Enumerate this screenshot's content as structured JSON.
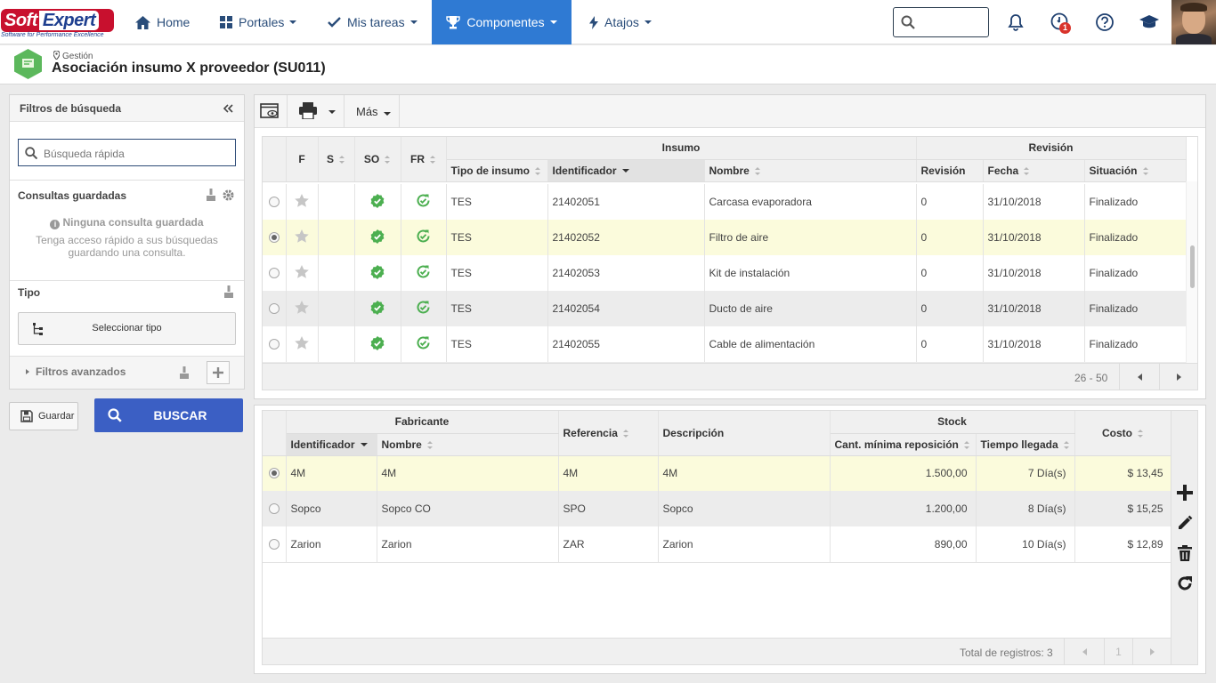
{
  "app": {
    "logo_soft": "Soft",
    "logo_expert": "Expert",
    "logo_tagline": "Software for Performance Excellence"
  },
  "nav": {
    "items": [
      {
        "label": "Home",
        "icon": "home-icon"
      },
      {
        "label": "Portales",
        "icon": "grid-icon"
      },
      {
        "label": "Mis tareas",
        "icon": "check-icon"
      },
      {
        "label": "Componentes",
        "icon": "trophy-icon"
      },
      {
        "label": "Atajos",
        "icon": "bolt-icon"
      }
    ],
    "notification_count": "1",
    "accent": "#2f7ad3"
  },
  "header": {
    "breadcrumb": "Gestión",
    "title": "Asociación insumo X proveedor (SU011)"
  },
  "filters": {
    "title": "Filtros de búsqueda",
    "search_placeholder": "Búsqueda rápida",
    "saved_title": "Consultas guardadas",
    "saved_empty": "Ninguna consulta guardada",
    "saved_hint": "Tenga acceso rápido a sus búsquedas guardando una consulta.",
    "type_title": "Tipo",
    "select_type": "Seleccionar tipo",
    "advanced": "Filtros avanzados",
    "save": "Guardar",
    "search": "BUSCAR"
  },
  "toolbar": {
    "more": "Más"
  },
  "grid1": {
    "group_insumo": "Insumo",
    "group_revision": "Revisión",
    "cols": {
      "f": "F",
      "s": "S",
      "so": "SO",
      "fr": "FR",
      "tipo": "Tipo de insumo",
      "id": "Identificador",
      "nombre": "Nombre",
      "revision": "Revisión",
      "fecha": "Fecha",
      "situacion": "Situación"
    },
    "rows": [
      {
        "tipo": "TES",
        "id": "21402051",
        "nombre": "Carcasa evaporadora",
        "revision": "0",
        "fecha": "31/10/2018",
        "situacion": "Finalizado"
      },
      {
        "tipo": "TES",
        "id": "21402052",
        "nombre": "Filtro de aire",
        "revision": "0",
        "fecha": "31/10/2018",
        "situacion": "Finalizado"
      },
      {
        "tipo": "TES",
        "id": "21402053",
        "nombre": "Kit de instalación",
        "revision": "0",
        "fecha": "31/10/2018",
        "situacion": "Finalizado"
      },
      {
        "tipo": "TES",
        "id": "21402054",
        "nombre": "Ducto de aire",
        "revision": "0",
        "fecha": "31/10/2018",
        "situacion": "Finalizado"
      },
      {
        "tipo": "TES",
        "id": "21402055",
        "nombre": "Cable de alimentación",
        "revision": "0",
        "fecha": "31/10/2018",
        "situacion": "Finalizado"
      }
    ],
    "range": "26 - 50"
  },
  "grid2": {
    "group_fabricante": "Fabricante",
    "group_stock": "Stock",
    "cols": {
      "id": "Identificador",
      "nombre": "Nombre",
      "referencia": "Referencia",
      "descripcion": "Descripción",
      "cant": "Cant. mínima reposición",
      "tiempo": "Tiempo llegada",
      "costo": "Costo"
    },
    "rows": [
      {
        "id": "4M",
        "nombre": "4M",
        "referencia": "4M",
        "descripcion": "4M",
        "cant": "1.500,00",
        "tiempo": "7 Día(s)",
        "costo": "$ 13,45"
      },
      {
        "id": "Sopco",
        "nombre": "Sopco CO",
        "referencia": "SPO",
        "descripcion": "Sopco",
        "cant": "1.200,00",
        "tiempo": "8 Día(s)",
        "costo": "$ 15,25"
      },
      {
        "id": "Zarion",
        "nombre": "Zarion",
        "referencia": "ZAR",
        "descripcion": "Zarion",
        "cant": "890,00",
        "tiempo": "10 Día(s)",
        "costo": "$ 12,89"
      }
    ],
    "total": "Total de registros: 3",
    "page": "1"
  }
}
